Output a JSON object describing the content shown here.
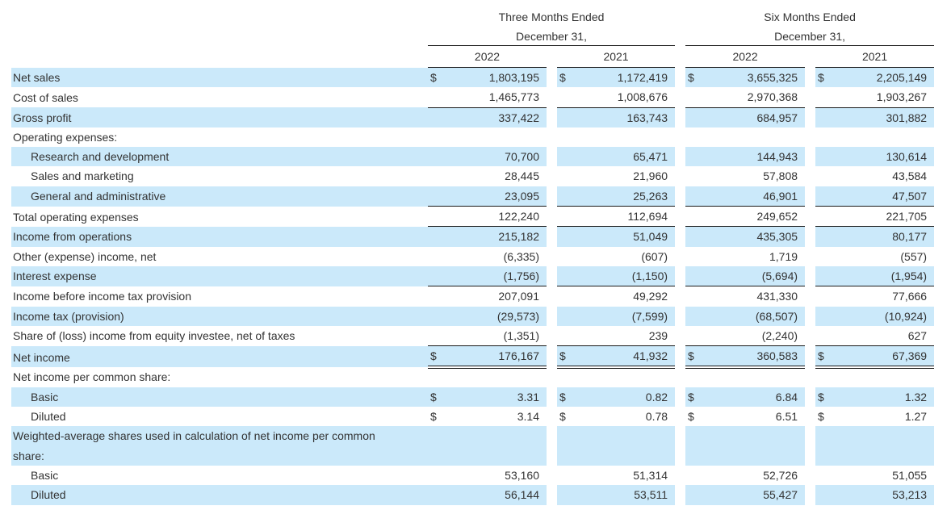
{
  "table": {
    "currency_symbol": "$",
    "colors": {
      "row_highlight": "#cbe9fa",
      "text": "#333333",
      "rule": "#1a1a1a"
    },
    "header": {
      "col_groups": [
        {
          "title_line1": "Three Months Ended",
          "title_line2": "December 31,",
          "years": [
            "2022",
            "2021"
          ]
        },
        {
          "title_line1": "Six Months Ended",
          "title_line2": "December 31,",
          "years": [
            "2022",
            "2021"
          ]
        }
      ]
    },
    "rows": [
      {
        "label": "Net sales",
        "indent": 0,
        "shaded": true,
        "dollar": true,
        "values": [
          "1,803,195",
          "1,172,419",
          "3,655,325",
          "2,205,149"
        ],
        "border_bottom": "none"
      },
      {
        "label": "Cost of sales",
        "indent": 0,
        "shaded": false,
        "dollar": false,
        "values": [
          "1,465,773",
          "1,008,676",
          "2,970,368",
          "1,903,267"
        ],
        "border_bottom": "single"
      },
      {
        "label": "Gross profit",
        "indent": 0,
        "shaded": true,
        "dollar": false,
        "values": [
          "337,422",
          "163,743",
          "684,957",
          "301,882"
        ],
        "border_bottom": "none"
      },
      {
        "label": "Operating expenses:",
        "indent": 0,
        "shaded": false,
        "dollar": false,
        "values": null,
        "border_bottom": "none"
      },
      {
        "label": "Research and development",
        "indent": 1,
        "shaded": true,
        "dollar": false,
        "values": [
          "70,700",
          "65,471",
          "144,943",
          "130,614"
        ],
        "border_bottom": "none"
      },
      {
        "label": "Sales and marketing",
        "indent": 1,
        "shaded": false,
        "dollar": false,
        "values": [
          "28,445",
          "21,960",
          "57,808",
          "43,584"
        ],
        "border_bottom": "none"
      },
      {
        "label": "General and administrative",
        "indent": 1,
        "shaded": true,
        "dollar": false,
        "values": [
          "23,095",
          "25,263",
          "46,901",
          "47,507"
        ],
        "border_bottom": "single"
      },
      {
        "label": "Total operating expenses",
        "indent": 0,
        "shaded": false,
        "dollar": false,
        "values": [
          "122,240",
          "112,694",
          "249,652",
          "221,705"
        ],
        "border_bottom": "single"
      },
      {
        "label": "Income from operations",
        "indent": 0,
        "shaded": true,
        "dollar": false,
        "values": [
          "215,182",
          "51,049",
          "435,305",
          "80,177"
        ],
        "border_bottom": "none"
      },
      {
        "label": "Other (expense) income, net",
        "indent": 0,
        "shaded": false,
        "dollar": false,
        "values": [
          "(6,335)",
          "(607)",
          "1,719",
          "(557)"
        ],
        "border_bottom": "none"
      },
      {
        "label": "Interest expense",
        "indent": 0,
        "shaded": true,
        "dollar": false,
        "values": [
          "(1,756)",
          "(1,150)",
          "(5,694)",
          "(1,954)"
        ],
        "border_bottom": "single"
      },
      {
        "label": "Income before income tax provision",
        "indent": 0,
        "shaded": false,
        "dollar": false,
        "values": [
          "207,091",
          "49,292",
          "431,330",
          "77,666"
        ],
        "border_bottom": "none"
      },
      {
        "label": "Income tax (provision)",
        "indent": 0,
        "shaded": true,
        "dollar": false,
        "values": [
          "(29,573)",
          "(7,599)",
          "(68,507)",
          "(10,924)"
        ],
        "border_bottom": "none"
      },
      {
        "label": "Share of (loss) income from equity investee, net of taxes",
        "indent": 0,
        "shaded": false,
        "dollar": false,
        "values": [
          "(1,351)",
          "239",
          "(2,240)",
          "627"
        ],
        "border_bottom": "single"
      },
      {
        "label": "Net income",
        "indent": 0,
        "shaded": true,
        "dollar": true,
        "values": [
          "176,167",
          "41,932",
          "360,583",
          "67,369"
        ],
        "border_bottom": "double"
      },
      {
        "label": "Net income per common share:",
        "indent": 0,
        "shaded": false,
        "dollar": false,
        "values": null,
        "border_bottom": "none"
      },
      {
        "label": "Basic",
        "indent": 1,
        "shaded": true,
        "dollar": true,
        "values": [
          "3.31",
          "0.82",
          "6.84",
          "1.32"
        ],
        "border_bottom": "none"
      },
      {
        "label": "Diluted",
        "indent": 1,
        "shaded": false,
        "dollar": true,
        "values": [
          "3.14",
          "0.78",
          "6.51",
          "1.27"
        ],
        "border_bottom": "none"
      },
      {
        "label": "Weighted-average shares used in calculation of net income per common\nshare:",
        "indent": 0,
        "shaded": true,
        "dollar": false,
        "values": null,
        "border_bottom": "none"
      },
      {
        "label": "Basic",
        "indent": 1,
        "shaded": false,
        "dollar": false,
        "values": [
          "53,160",
          "51,314",
          "52,726",
          "51,055"
        ],
        "border_bottom": "none"
      },
      {
        "label": "Diluted",
        "indent": 1,
        "shaded": true,
        "dollar": false,
        "values": [
          "56,144",
          "53,511",
          "55,427",
          "53,213"
        ],
        "border_bottom": "none"
      }
    ]
  }
}
